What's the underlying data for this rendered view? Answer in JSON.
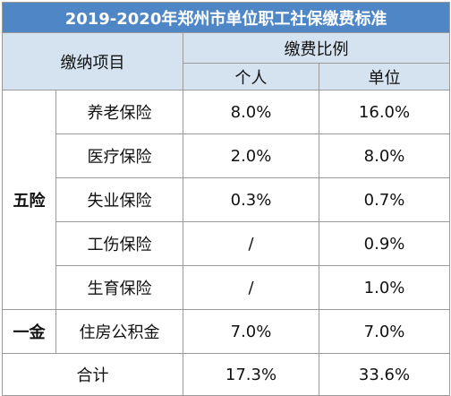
{
  "title": "2019-2020年郑州市单位职工社保缴费标准",
  "headers": {
    "item": "缴纳项目",
    "ratio": "缴费比例",
    "personal": "个人",
    "employer": "单位"
  },
  "sections": {
    "wuxian": "五险",
    "yijin": "一金"
  },
  "rows": [
    {
      "name": "养老保险",
      "personal": "8.0%",
      "employer": "16.0%"
    },
    {
      "name": "医疗保险",
      "personal": "2.0%",
      "employer": "8.0%"
    },
    {
      "name": "失业保险",
      "personal": "0.3%",
      "employer": "0.7%"
    },
    {
      "name": "工伤保险",
      "personal": "/",
      "employer": "0.9%"
    },
    {
      "name": "生育保险",
      "personal": "/",
      "employer": "1.0%"
    },
    {
      "name": "住房公积金",
      "personal": "7.0%",
      "employer": "7.0%"
    }
  ],
  "total": {
    "label": "合计",
    "personal": "17.3%",
    "employer": "33.6%"
  },
  "colors": {
    "title_bg": "#4f87c6",
    "header_bg": "#d5e3f1",
    "border": "#9a9a9a"
  }
}
